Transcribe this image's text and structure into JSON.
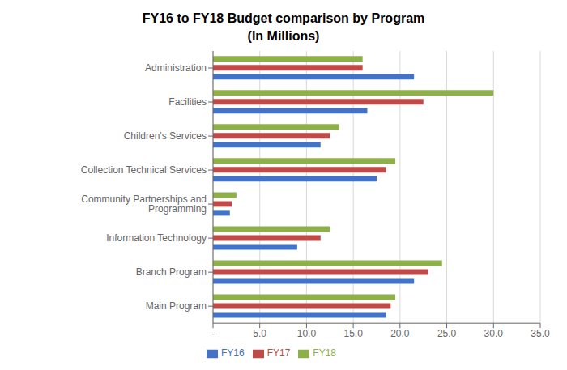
{
  "chart_data": {
    "type": "bar",
    "orientation": "horizontal",
    "title": "FY16 to FY18 Budget comparison by Program\n(In Millions)",
    "categories": [
      "Administration",
      "Facilities",
      "Children's Services",
      "Collection Technical Services",
      "Community Partnerships and Programming",
      "Information Technology",
      "Branch Program",
      "Main Program"
    ],
    "series": [
      {
        "name": "FY18",
        "color": "#8DB04A",
        "values": [
          16.0,
          30.0,
          13.5,
          19.5,
          2.5,
          12.5,
          24.5,
          19.5
        ]
      },
      {
        "name": "FY17",
        "color": "#BE4B48",
        "values": [
          16.0,
          22.5,
          12.5,
          18.5,
          2.0,
          11.5,
          23.0,
          19.0
        ]
      },
      {
        "name": "FY16",
        "color": "#4472C4",
        "values": [
          21.5,
          16.5,
          11.5,
          17.5,
          1.8,
          9.0,
          21.5,
          18.5
        ]
      }
    ],
    "xlim": [
      0,
      35
    ],
    "xticks": [
      {
        "value": 0,
        "label": "-"
      },
      {
        "value": 5,
        "label": "5.0"
      },
      {
        "value": 10,
        "label": "10.0"
      },
      {
        "value": 15,
        "label": "15.0"
      },
      {
        "value": 20,
        "label": "20.0"
      },
      {
        "value": 25,
        "label": "25.0"
      },
      {
        "value": 30,
        "label": "30.0"
      },
      {
        "value": 35,
        "label": "35.0"
      }
    ],
    "grid": true,
    "legend": "bottom"
  }
}
